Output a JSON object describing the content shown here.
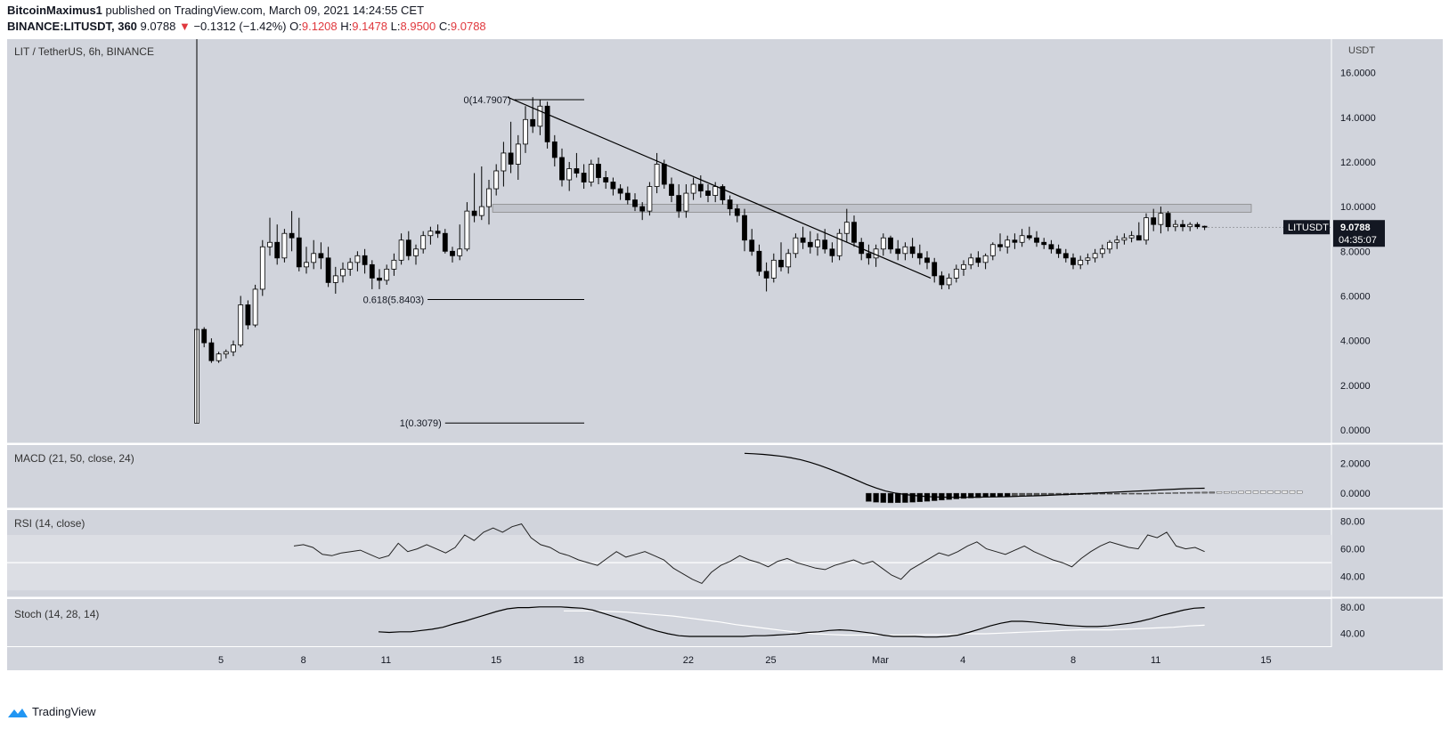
{
  "header": {
    "author": "BitcoinMaximus1",
    "published_prefix": "published on TradingView.com, March 09, 2021 14:24:55 CET",
    "symbol_line": "BINANCE:LITUSDT, 360",
    "last": "9.0788",
    "arrow": "▼",
    "change": "−0.1312 (−1.42%)",
    "ohlc": [
      {
        "k": "O:",
        "v": "9.1208"
      },
      {
        "k": "H:",
        "v": "9.1478"
      },
      {
        "k": "L:",
        "v": "8.9500"
      },
      {
        "k": "C:",
        "v": "9.0788"
      }
    ]
  },
  "footer": {
    "brand": "TradingView"
  },
  "chart_data": [
    {
      "type": "candlestick",
      "title": "LIT / TetherUS, 6h, BINANCE",
      "ylabel": "USDT",
      "ylim": [
        -0.6,
        17.5
      ],
      "y_ticks": [
        "0.0000",
        "2.0000",
        "4.0000",
        "6.0000",
        "8.0000",
        "10.0000",
        "12.0000",
        "14.0000",
        "16.0000"
      ],
      "x_ticks": [
        "5",
        "8",
        "11",
        "15",
        "18",
        "22",
        "25",
        "Mar",
        "4",
        "8",
        "11",
        "15"
      ],
      "last_price_label": {
        "symbol": "LITUSDT",
        "price": "9.0788",
        "countdown": "04:35:07"
      },
      "fibonacci": [
        {
          "label": "0(14.7907)",
          "value": 14.7907
        },
        {
          "label": "0.618(5.8403)",
          "value": 5.8403
        },
        {
          "label": "1(0.3079)",
          "value": 0.3079
        }
      ],
      "resistance_zone": [
        9.75,
        10.1
      ],
      "trendline": [
        [
          15.6,
          14.9
        ],
        [
          28.3,
          6.8
        ]
      ],
      "x_range": [
        3,
        17.6
      ],
      "candles_ohlc": [
        [
          0.3,
          4.5,
          0.3,
          4.5
        ],
        [
          4.5,
          4.6,
          3.7,
          3.9
        ],
        [
          3.9,
          4.1,
          3.0,
          3.1
        ],
        [
          3.1,
          3.5,
          3.0,
          3.4
        ],
        [
          3.4,
          3.6,
          3.2,
          3.5
        ],
        [
          3.5,
          4.0,
          3.3,
          3.8
        ],
        [
          3.8,
          6.0,
          3.7,
          5.6
        ],
        [
          5.6,
          5.8,
          4.5,
          4.7
        ],
        [
          4.7,
          6.5,
          4.6,
          6.3
        ],
        [
          6.3,
          8.5,
          6.0,
          8.2
        ],
        [
          8.2,
          9.5,
          7.8,
          8.4
        ],
        [
          8.4,
          9.2,
          7.4,
          7.7
        ],
        [
          7.7,
          9.0,
          7.5,
          8.8
        ],
        [
          8.8,
          9.8,
          8.0,
          8.6
        ],
        [
          8.6,
          9.5,
          7.1,
          7.3
        ],
        [
          7.3,
          8.2,
          7.0,
          7.5
        ],
        [
          7.5,
          8.5,
          7.2,
          7.9
        ],
        [
          7.9,
          8.4,
          7.2,
          7.7
        ],
        [
          7.7,
          8.2,
          6.4,
          6.6
        ],
        [
          6.6,
          7.3,
          6.1,
          6.9
        ],
        [
          6.9,
          7.5,
          6.6,
          7.2
        ],
        [
          7.2,
          7.7,
          6.9,
          7.5
        ],
        [
          7.5,
          8.0,
          7.1,
          7.8
        ],
        [
          7.8,
          8.1,
          7.0,
          7.4
        ],
        [
          7.4,
          7.6,
          6.3,
          6.8
        ],
        [
          6.8,
          7.2,
          6.3,
          6.7
        ],
        [
          6.7,
          7.4,
          6.5,
          7.2
        ],
        [
          7.2,
          7.9,
          6.9,
          7.6
        ],
        [
          7.6,
          8.8,
          7.4,
          8.5
        ],
        [
          8.5,
          8.9,
          7.6,
          7.8
        ],
        [
          7.8,
          8.3,
          7.4,
          8.1
        ],
        [
          8.1,
          8.9,
          7.9,
          8.7
        ],
        [
          8.7,
          9.1,
          8.3,
          8.9
        ],
        [
          8.9,
          9.2,
          8.6,
          8.8
        ],
        [
          8.8,
          9.0,
          7.9,
          8.0
        ],
        [
          8.0,
          8.2,
          7.5,
          7.8
        ],
        [
          7.8,
          9.2,
          7.6,
          8.1
        ],
        [
          8.1,
          10.2,
          8.0,
          9.8
        ],
        [
          9.8,
          11.5,
          9.3,
          9.6
        ],
        [
          9.6,
          11.8,
          9.4,
          10.0
        ],
        [
          10.0,
          11.2,
          9.2,
          10.8
        ],
        [
          10.8,
          11.9,
          10.5,
          11.6
        ],
        [
          11.6,
          12.9,
          10.9,
          12.4
        ],
        [
          12.4,
          13.8,
          11.5,
          11.9
        ],
        [
          11.9,
          13.2,
          11.2,
          12.8
        ],
        [
          12.8,
          14.5,
          12.4,
          13.9
        ],
        [
          13.9,
          14.9,
          13.3,
          13.6
        ],
        [
          13.6,
          14.8,
          13.2,
          14.5
        ],
        [
          14.5,
          14.7,
          12.6,
          12.9
        ],
        [
          12.9,
          13.2,
          11.8,
          12.2
        ],
        [
          12.2,
          12.6,
          10.9,
          11.2
        ],
        [
          11.2,
          12.0,
          10.7,
          11.7
        ],
        [
          11.7,
          12.4,
          11.3,
          11.5
        ],
        [
          11.5,
          11.9,
          10.8,
          11.1
        ],
        [
          11.1,
          12.1,
          10.9,
          11.9
        ],
        [
          11.9,
          12.2,
          11.0,
          11.3
        ],
        [
          11.3,
          11.6,
          10.8,
          11.1
        ],
        [
          11.1,
          11.3,
          10.5,
          10.8
        ],
        [
          10.8,
          11.0,
          10.3,
          10.6
        ],
        [
          10.6,
          10.9,
          10.1,
          10.3
        ],
        [
          10.3,
          10.6,
          9.8,
          10.0
        ],
        [
          10.0,
          10.2,
          9.4,
          9.8
        ],
        [
          9.8,
          11.1,
          9.6,
          10.9
        ],
        [
          10.9,
          12.4,
          10.6,
          11.9
        ],
        [
          11.9,
          12.1,
          10.8,
          11.0
        ],
        [
          11.0,
          11.3,
          10.2,
          10.5
        ],
        [
          10.5,
          11.0,
          9.5,
          9.8
        ],
        [
          9.8,
          11.0,
          9.5,
          10.6
        ],
        [
          10.6,
          11.3,
          10.3,
          11.0
        ],
        [
          11.0,
          11.4,
          10.4,
          10.7
        ],
        [
          10.7,
          11.0,
          10.2,
          10.5
        ],
        [
          10.5,
          11.1,
          10.2,
          10.9
        ],
        [
          10.9,
          11.0,
          10.1,
          10.3
        ],
        [
          10.3,
          10.5,
          9.6,
          9.9
        ],
        [
          9.9,
          10.1,
          9.3,
          9.6
        ],
        [
          9.6,
          9.9,
          8.0,
          8.5
        ],
        [
          8.5,
          9.0,
          7.8,
          8.0
        ],
        [
          8.0,
          8.3,
          6.9,
          7.1
        ],
        [
          7.1,
          7.5,
          6.2,
          6.8
        ],
        [
          6.8,
          7.9,
          6.6,
          7.6
        ],
        [
          7.6,
          8.4,
          7.1,
          7.3
        ],
        [
          7.3,
          8.1,
          7.0,
          7.9
        ],
        [
          7.9,
          8.8,
          7.7,
          8.6
        ],
        [
          8.6,
          9.1,
          8.1,
          8.4
        ],
        [
          8.4,
          8.9,
          7.9,
          8.2
        ],
        [
          8.2,
          8.8,
          7.8,
          8.5
        ],
        [
          8.5,
          9.0,
          7.9,
          8.1
        ],
        [
          8.1,
          8.4,
          7.5,
          7.8
        ],
        [
          7.8,
          9.0,
          7.6,
          8.8
        ],
        [
          8.8,
          9.9,
          8.4,
          9.3
        ],
        [
          9.3,
          9.6,
          8.2,
          8.4
        ],
        [
          8.4,
          8.6,
          7.6,
          7.9
        ],
        [
          7.9,
          8.3,
          7.4,
          7.7
        ],
        [
          7.7,
          8.3,
          7.3,
          8.1
        ],
        [
          8.1,
          8.8,
          7.8,
          8.6
        ],
        [
          8.6,
          8.7,
          7.9,
          8.1
        ],
        [
          8.1,
          8.5,
          7.6,
          7.9
        ],
        [
          7.9,
          8.4,
          7.6,
          8.2
        ],
        [
          8.2,
          8.6,
          7.7,
          7.9
        ],
        [
          7.9,
          8.3,
          7.4,
          7.7
        ],
        [
          7.7,
          8.0,
          7.2,
          7.5
        ],
        [
          7.5,
          7.7,
          6.6,
          6.9
        ],
        [
          6.9,
          7.1,
          6.3,
          6.5
        ],
        [
          6.5,
          7.0,
          6.3,
          6.8
        ],
        [
          6.8,
          7.4,
          6.6,
          7.2
        ],
        [
          7.2,
          7.6,
          6.9,
          7.4
        ],
        [
          7.4,
          7.9,
          7.2,
          7.7
        ],
        [
          7.7,
          8.0,
          7.3,
          7.5
        ],
        [
          7.5,
          7.9,
          7.2,
          7.8
        ],
        [
          7.8,
          8.4,
          7.6,
          8.3
        ],
        [
          8.3,
          8.8,
          8.0,
          8.2
        ],
        [
          8.2,
          8.7,
          7.9,
          8.5
        ],
        [
          8.5,
          8.8,
          8.1,
          8.4
        ],
        [
          8.4,
          9.0,
          8.2,
          8.7
        ],
        [
          8.7,
          9.1,
          8.5,
          8.6
        ],
        [
          8.6,
          8.9,
          8.2,
          8.4
        ],
        [
          8.4,
          8.6,
          8.1,
          8.3
        ],
        [
          8.3,
          8.5,
          7.9,
          8.1
        ],
        [
          8.1,
          8.3,
          7.7,
          7.9
        ],
        [
          7.9,
          8.1,
          7.5,
          7.7
        ],
        [
          7.7,
          7.9,
          7.2,
          7.4
        ],
        [
          7.4,
          7.8,
          7.2,
          7.6
        ],
        [
          7.6,
          7.9,
          7.4,
          7.7
        ],
        [
          7.7,
          8.1,
          7.5,
          7.9
        ],
        [
          7.9,
          8.3,
          7.7,
          8.1
        ],
        [
          8.1,
          8.5,
          7.9,
          8.4
        ],
        [
          8.4,
          8.7,
          8.1,
          8.5
        ],
        [
          8.5,
          8.8,
          8.3,
          8.6
        ],
        [
          8.6,
          8.9,
          8.4,
          8.7
        ],
        [
          8.7,
          9.3,
          8.5,
          8.5
        ],
        [
          8.5,
          9.7,
          8.3,
          9.5
        ],
        [
          9.5,
          9.9,
          8.9,
          9.2
        ],
        [
          9.2,
          10.0,
          8.8,
          9.7
        ],
        [
          9.7,
          9.8,
          8.9,
          9.1
        ],
        [
          9.1,
          9.4,
          8.9,
          9.2
        ],
        [
          9.2,
          9.4,
          8.9,
          9.1
        ],
        [
          9.1,
          9.3,
          8.9,
          9.2
        ],
        [
          9.2,
          9.3,
          9.0,
          9.1
        ],
        [
          9.1208,
          9.1478,
          8.95,
          9.0788
        ]
      ]
    },
    {
      "type": "line",
      "title": "MACD (21, 50, close, 24)",
      "y_ticks": [
        "2.0000",
        "0.0000"
      ],
      "ylim": [
        -1.0,
        3.2
      ],
      "macd_line": [
        2.65,
        2.62,
        2.58,
        2.52,
        2.45,
        2.35,
        2.22,
        2.05,
        1.85,
        1.62,
        1.38,
        1.12,
        0.85,
        0.58,
        0.35,
        0.15,
        0.02,
        -0.08,
        -0.15,
        -0.2,
        -0.24,
        -0.26,
        -0.27,
        -0.27,
        -0.27,
        -0.26,
        -0.25,
        -0.24,
        -0.23,
        -0.21,
        -0.19,
        -0.17,
        -0.15,
        -0.12,
        -0.09,
        -0.06,
        -0.03,
        0.0,
        0.03,
        0.06,
        0.09,
        0.12,
        0.15,
        0.18,
        0.21,
        0.24,
        0.27,
        0.3,
        0.32,
        0.33
      ],
      "macd_start_index": 75,
      "histogram": [
        -0.55,
        -0.6,
        -0.62,
        -0.64,
        -0.63,
        -0.62,
        -0.6,
        -0.57,
        -0.54,
        -0.5,
        -0.46,
        -0.42,
        -0.38,
        -0.35,
        -0.32,
        -0.3,
        -0.28,
        -0.26,
        -0.24,
        -0.22,
        -0.21,
        -0.2,
        -0.19,
        -0.17,
        -0.16,
        -0.14,
        -0.13,
        -0.12,
        -0.1,
        -0.09,
        -0.08,
        -0.07,
        -0.06,
        -0.05,
        -0.04,
        -0.03,
        -0.02,
        -0.01,
        0.0,
        0.01,
        0.02,
        0.03,
        0.04,
        0.05,
        0.06,
        0.07,
        0.08,
        0.09,
        0.1,
        0.11,
        0.12,
        0.13,
        0.14,
        0.14,
        0.15,
        0.15,
        0.16,
        0.16,
        0.16,
        0.15
      ],
      "histogram_start_index": 92
    },
    {
      "type": "line",
      "title": "RSI (14, close)",
      "y_ticks": [
        "80.00",
        "60.00",
        "40.00"
      ],
      "ylim": [
        25,
        88
      ],
      "band": [
        30,
        70
      ],
      "midline": 50,
      "start_index": 14,
      "values": [
        62,
        63,
        61,
        56,
        55,
        57,
        58,
        59,
        56,
        53,
        55,
        64,
        58,
        60,
        63,
        60,
        57,
        61,
        70,
        66,
        72,
        75,
        72,
        76,
        78,
        68,
        63,
        61,
        57,
        55,
        52,
        50,
        48,
        53,
        58,
        54,
        56,
        58,
        55,
        52,
        46,
        42,
        38,
        35,
        43,
        48,
        51,
        55,
        52,
        50,
        47,
        51,
        53,
        50,
        48,
        46,
        45,
        48,
        50,
        52,
        49,
        51,
        46,
        41,
        38,
        45,
        49,
        53,
        57,
        55,
        58,
        62,
        65,
        60,
        58,
        56,
        59,
        62,
        58,
        55,
        52,
        50,
        47,
        53,
        58,
        62,
        65,
        63,
        61,
        60,
        70,
        68,
        72,
        62,
        60,
        61,
        58
      ],
      "values_tail_index": 123
    },
    {
      "type": "line",
      "title": "Stoch (14, 28, 14)",
      "y_ticks": [
        "80.00",
        "40.00"
      ],
      "ylim": [
        20,
        92
      ],
      "k_start_index": 26,
      "k": [
        42,
        41,
        42,
        42,
        44,
        46,
        49,
        54,
        58,
        63,
        68,
        73,
        77,
        79,
        79,
        80,
        80,
        80,
        79,
        78,
        75,
        70,
        65,
        60,
        54,
        48,
        43,
        39,
        36,
        35,
        35,
        35,
        35,
        35,
        35,
        36,
        36,
        37,
        38,
        39,
        41,
        42,
        44,
        45,
        44,
        42,
        40,
        37,
        35,
        35,
        35,
        34,
        34,
        35,
        37,
        41,
        46,
        51,
        55,
        58,
        58,
        57,
        55,
        54,
        52,
        51,
        50,
        50,
        51,
        53,
        55,
        58,
        62,
        67,
        71,
        75,
        78,
        79
      ],
      "d_start_index": 52,
      "d": [
        74,
        74,
        74,
        73,
        72,
        70,
        68,
        66,
        63,
        60,
        57,
        53,
        50,
        47,
        44,
        41,
        39,
        38,
        37,
        37,
        37,
        37,
        37,
        38,
        38,
        38,
        39,
        39,
        40,
        41,
        42,
        43,
        44,
        45,
        45,
        45,
        46,
        47,
        48,
        49,
        51,
        52
      ]
    }
  ]
}
